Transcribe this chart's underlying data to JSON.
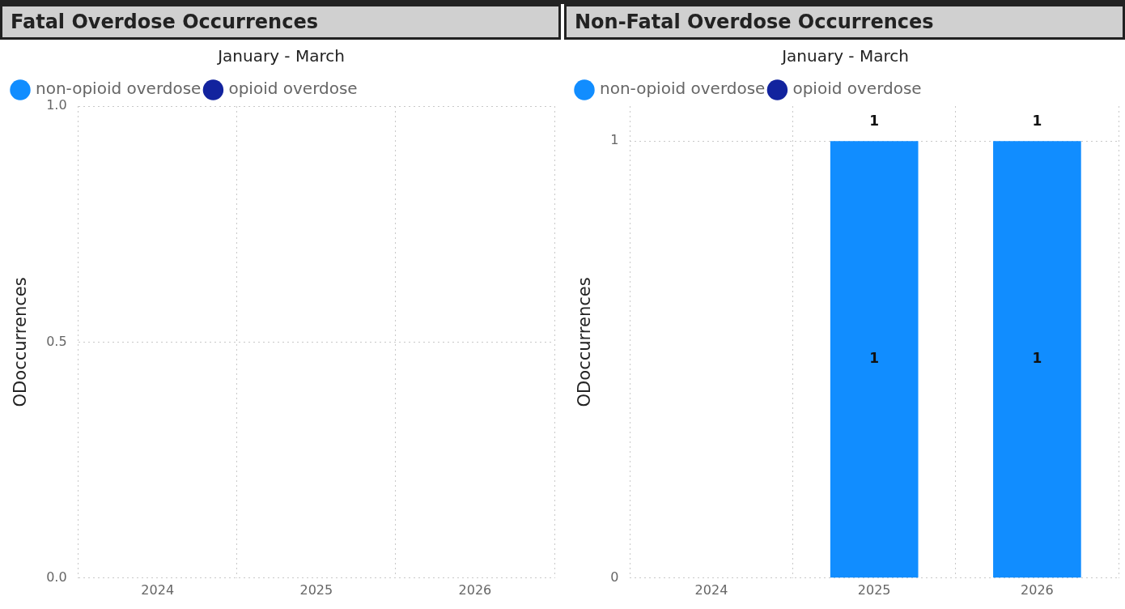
{
  "chart_data": [
    {
      "type": "bar",
      "title": "Fatal Overdose Occurrences",
      "subtitle": "January - March",
      "ylabel": "ODoccurrences",
      "categories": [
        "2024",
        "2025",
        "2026"
      ],
      "series": [
        {
          "name": "non-opioid overdose",
          "color": "#118dff",
          "values": [
            null,
            null,
            null
          ]
        },
        {
          "name": "opioid overdose",
          "color": "#12239e",
          "values": [
            null,
            null,
            null
          ]
        }
      ],
      "stacked": true,
      "ylim": [
        0,
        1
      ],
      "yticks": [
        {
          "value": 0,
          "label": "0.0"
        },
        {
          "value": 0.5,
          "label": "0.5"
        },
        {
          "value": 1,
          "label": "1.0"
        }
      ],
      "grid": true,
      "legend": "top left"
    },
    {
      "type": "bar",
      "title": "Non-Fatal Overdose Occurrences",
      "subtitle": "January - March",
      "ylabel": "ODoccurrences",
      "categories": [
        "2024",
        "2025",
        "2026"
      ],
      "series": [
        {
          "name": "non-opioid overdose",
          "color": "#118dff",
          "values": [
            null,
            1,
            1
          ]
        },
        {
          "name": "opioid overdose",
          "color": "#12239e",
          "values": [
            null,
            null,
            null
          ]
        }
      ],
      "stacked": true,
      "ylim": [
        0,
        1.08
      ],
      "yticks": [
        0,
        1
      ],
      "grid": true,
      "legend": "top left",
      "data_labels": true,
      "totals": [
        null,
        "1",
        "1"
      ]
    }
  ]
}
